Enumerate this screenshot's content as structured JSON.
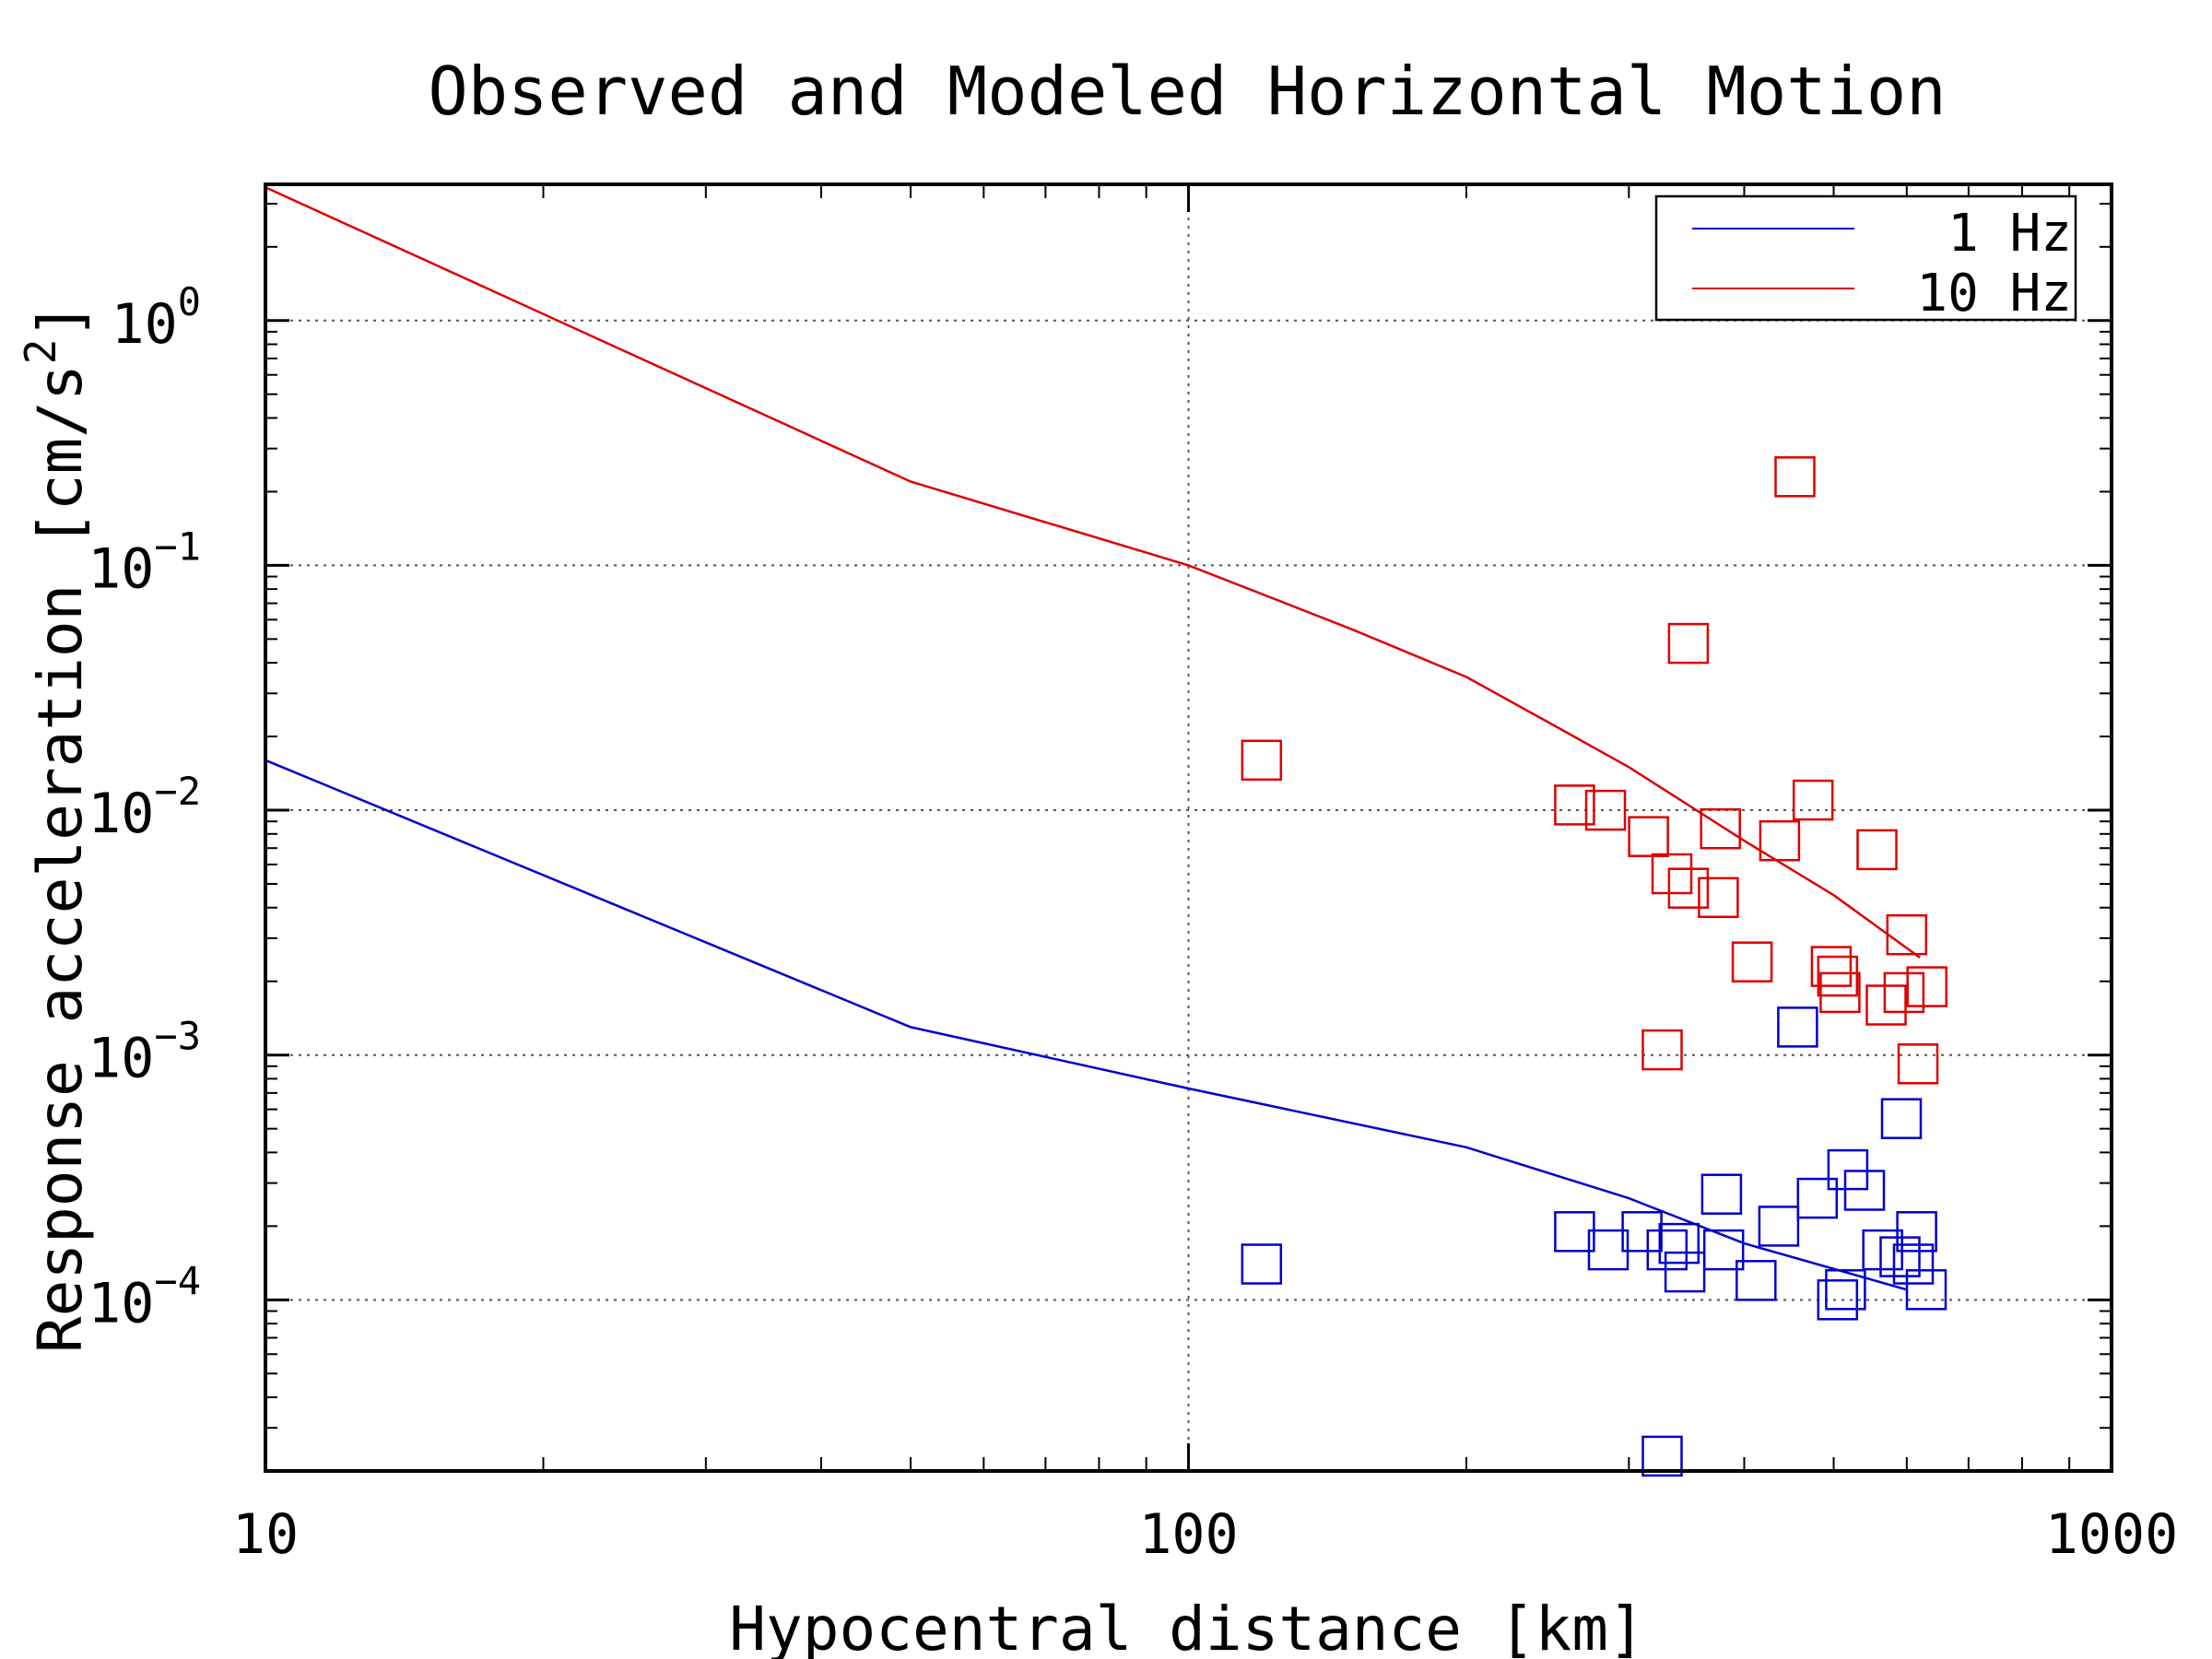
{
  "chart_data": {
    "type": "scatter",
    "title": "Observed and Modeled Horizontal Motion",
    "xlabel": "Hypocentral distance [km]",
    "ylabel": "Response acceleration [cm/s",
    "ylabel_sup": "2",
    "ylabel_end": "]",
    "xscale": "log",
    "yscale": "log",
    "xlim": [
      10,
      1000
    ],
    "ylim": [
      2e-05,
      3.6
    ],
    "x_ticks": [
      {
        "value": 10,
        "label": "10"
      },
      {
        "value": 100,
        "label": "100"
      },
      {
        "value": 1000,
        "label": "1000"
      }
    ],
    "y_ticks": [
      {
        "value": 1,
        "base": "10",
        "exp": "0"
      },
      {
        "value": 0.1,
        "base": "10",
        "exp": "−1"
      },
      {
        "value": 0.01,
        "base": "10",
        "exp": "−2"
      },
      {
        "value": 0.001,
        "base": "10",
        "exp": "−3"
      },
      {
        "value": 0.0001,
        "base": "10",
        "exp": "−4"
      }
    ],
    "grid": true,
    "legend_position": "top-right",
    "series": [
      {
        "name": "1 Hz",
        "color": "#0000cc",
        "line": [
          [
            10,
            0.016
          ],
          [
            50,
            0.0013
          ],
          [
            100,
            0.00073
          ],
          [
            200,
            0.00042
          ],
          [
            300,
            0.00026
          ],
          [
            400,
            0.00017
          ],
          [
            600,
            0.00011
          ]
        ],
        "points": [
          [
            120,
            0.00014
          ],
          [
            262,
            0.00019
          ],
          [
            285,
            0.00016
          ],
          [
            310,
            0.00019
          ],
          [
            330,
            0.00016
          ],
          [
            340,
            0.00017
          ],
          [
            345,
            0.00013
          ],
          [
            378,
            0.00027
          ],
          [
            380,
            0.00016
          ],
          [
            412,
            0.00012
          ],
          [
            436,
            0.0002
          ],
          [
            457,
            0.0013
          ],
          [
            480,
            0.00026
          ],
          [
            505,
            0.0001
          ],
          [
            515,
            0.00011
          ],
          [
            518,
            0.00034
          ],
          [
            540,
            0.00028
          ],
          [
            565,
            0.00016
          ],
          [
            590,
            0.00015
          ],
          [
            592,
            0.00055
          ],
          [
            610,
            0.00014
          ],
          [
            615,
            0.00019
          ],
          [
            630,
            0.00011
          ],
          [
            326,
            2.3e-05
          ]
        ]
      },
      {
        "name": "10 Hz",
        "color": "#dd0000",
        "line": [
          [
            10,
            3.5
          ],
          [
            50,
            0.22
          ],
          [
            100,
            0.1
          ],
          [
            150,
            0.055
          ],
          [
            200,
            0.035
          ],
          [
            250,
            0.022
          ],
          [
            300,
            0.015
          ],
          [
            400,
            0.0075
          ],
          [
            500,
            0.0045
          ],
          [
            620,
            0.0025
          ]
        ],
        "points": [
          [
            120,
            0.016
          ],
          [
            262,
            0.0105
          ],
          [
            283,
            0.01
          ],
          [
            315,
            0.0078
          ],
          [
            334,
            0.0055
          ],
          [
            348,
            0.0048
          ],
          [
            348,
            0.048
          ],
          [
            377,
            0.0084
          ],
          [
            375,
            0.0044
          ],
          [
            408,
            0.0024
          ],
          [
            437,
            0.0075
          ],
          [
            454,
            0.23
          ],
          [
            475,
            0.011
          ],
          [
            497,
            0.0023
          ],
          [
            505,
            0.0021
          ],
          [
            508,
            0.0018
          ],
          [
            557,
            0.0069
          ],
          [
            570,
            0.0016
          ],
          [
            596,
            0.0018
          ],
          [
            600,
            0.0031
          ],
          [
            617,
            0.00092
          ],
          [
            631,
            0.0019
          ],
          [
            326,
            0.00105
          ]
        ]
      }
    ]
  }
}
